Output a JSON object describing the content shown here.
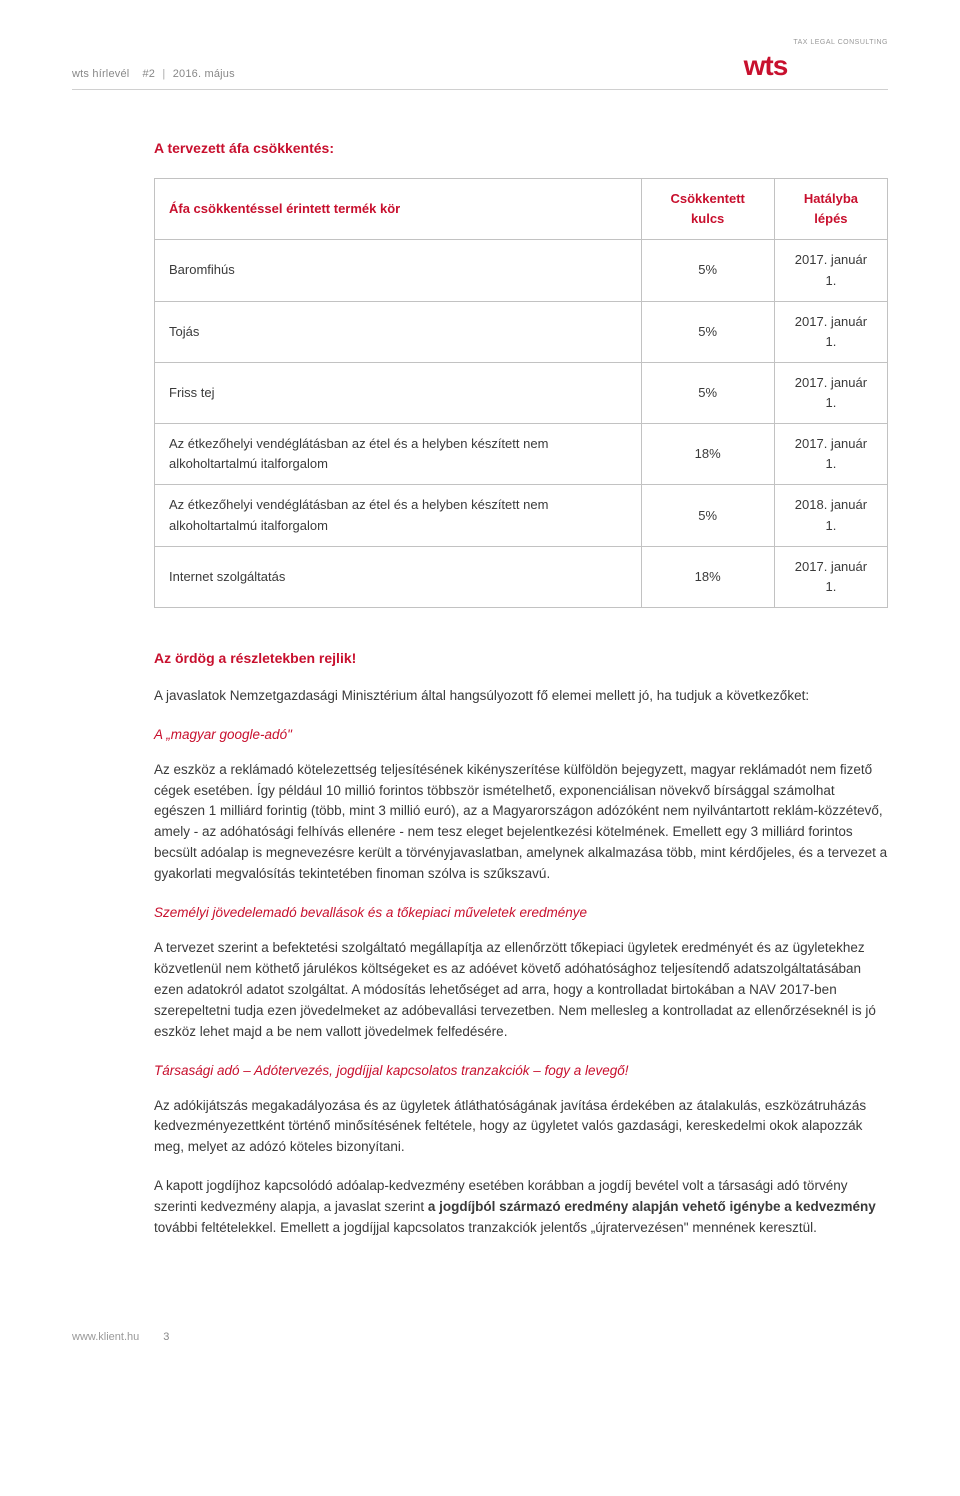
{
  "header": {
    "brand_small": "wts",
    "doc_type": "hírlevél",
    "issue": "#2",
    "date": "2016. május",
    "logo_text": "wts",
    "logo_sub": "TAX LEGAL CONSULTING"
  },
  "section1_title": "A tervezett áfa csökkentés:",
  "table": {
    "columns": [
      "Áfa csökkentéssel érintett termék kör",
      "Csökkentett kulcs",
      "Hatályba lépés"
    ],
    "col_align": [
      "left",
      "center",
      "center"
    ],
    "border_color": "#c2c2c2",
    "header_color": "#c8102e",
    "rows": [
      {
        "cells": [
          "Baromfihús",
          "5%",
          "2017. január 1."
        ]
      },
      {
        "cells": [
          "Tojás",
          "5%",
          "2017. január 1."
        ]
      },
      {
        "cells": [
          "Friss tej",
          "5%",
          "2017. január 1."
        ]
      },
      {
        "cells": [
          "Az étkezőhelyi vendéglátásban az étel és a helyben készített nem alkoholtartalmú italforgalom",
          "18%",
          "2017. január 1."
        ]
      },
      {
        "cells": [
          "Az étkezőhelyi vendéglátásban az étel és a helyben készített nem alkoholtartalmú italforgalom",
          "5%",
          "2018. január 1."
        ]
      },
      {
        "cells": [
          "Internet szolgáltatás",
          "18%",
          "2017. január 1."
        ]
      }
    ]
  },
  "section2_title": "Az ördög a részletekben rejlik!",
  "intro_para": "A javaslatok Nemzetgazdasági Minisztérium által hangsúlyozott fő elemei mellett jó, ha tudjuk a következőket:",
  "sub1_title": "A „magyar google-adó\"",
  "sub1_para": "Az eszköz a reklámadó kötelezettség teljesítésének kikényszerítése külföldön bejegyzett, magyar reklámadót nem fizető cégek esetében. Így például 10 millió forintos többször ismételhető, exponenciálisan növekvő bírsággal számolhat egészen 1 milliárd forintig (több, mint 3 millió euró), az a Magyarországon adózóként nem nyilvántartott reklám-közzétevő, amely - az adóhatósági felhívás ellenére - nem tesz eleget bejelentkezési kötelmének. Emellett egy 3 milliárd forintos becsült adóalap is megnevezésre került a törvényjavaslatban, amelynek alkalmazása több, mint kérdőjeles, és a tervezet a gyakorlati megvalósítás tekintetében finoman szólva is szűkszavú.",
  "sub2_title": "Személyi jövedelemadó bevallások és a tőkepiaci műveletek eredménye",
  "sub2_para": "A tervezet szerint a befektetési szolgáltató megállapítja az ellenőrzött tőkepiaci ügyletek eredményét és az ügyletekhez közvetlenül nem köthető járulékos költségeket es az adóévet követő adóhatósághoz teljesítendő adatszolgáltatásában ezen adatokról adatot szolgáltat. A módosítás lehetőséget ad arra, hogy a kontrolladat birtokában a NAV 2017-ben szerepeltetni tudja ezen jövedelmeket az adóbevallási tervezetben. Nem mellesleg a kontrolladat az ellenőrzéseknél is jó eszköz lehet majd a be nem vallott jövedelmek felfedésére.",
  "sub3_title": "Társasági adó – Adótervezés, jogdíjjal kapcsolatos tranzakciók – fogy a levegő!",
  "sub3_para1": "Az adókijátszás megakadályozása és az ügyletek átláthatóságának javítása érdekében az átalakulás, eszközátruházás kedvezményezettként történő minősítésének feltétele, hogy az ügyletet valós gazdasági, kereskedelmi okok alapozzák meg, melyet az adózó köteles bizonyítani.",
  "sub3_para2_pre": "A kapott jogdíjhoz kapcsolódó adóalap-kedvezmény esetében korábban a jogdíj bevétel volt a társasági adó törvény szerinti kedvezmény alapja, a javaslat szerint ",
  "sub3_para2_bold": "a jogdíjból származó eredmény alapján vehető igénybe a kedvezmény",
  "sub3_para2_post": " további feltételekkel. Emellett a jogdíjjal kapcsolatos tranzakciók jelentős „újratervezésen\" mennének keresztül.",
  "footer": {
    "site": "www.klient.hu",
    "page": "3"
  },
  "colors": {
    "brand_red": "#c8102e",
    "text": "#3a3a3a",
    "muted": "#888888",
    "border": "#c2c2c2",
    "background": "#ffffff"
  }
}
